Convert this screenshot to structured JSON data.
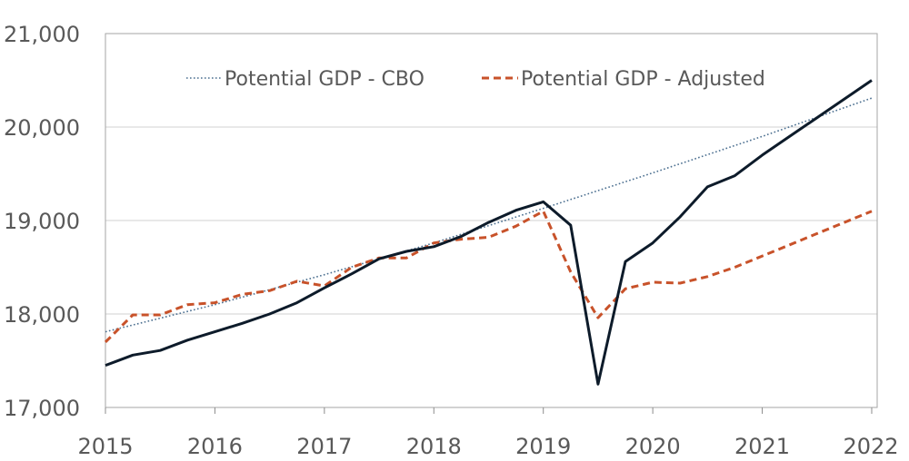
{
  "chart_data": {
    "type": "line",
    "x_ticks": [
      "2015",
      "2016",
      "2017",
      "2018",
      "2019",
      "2020",
      "2021",
      "2022"
    ],
    "y_ticks": [
      "17,000",
      "18,000",
      "19,000",
      "20,000",
      "21,000"
    ],
    "ylim": [
      17000,
      21000
    ],
    "xlim": [
      2015.0,
      2022.05
    ],
    "grid": "horizontal",
    "legend_position": "top-center",
    "series": [
      {
        "name": "",
        "color": "#0d1b2a",
        "style": "solid",
        "points": [
          [
            2015.0,
            17450
          ],
          [
            2015.25,
            17560
          ],
          [
            2015.5,
            17610
          ],
          [
            2015.75,
            17720
          ],
          [
            2016.0,
            17810
          ],
          [
            2016.25,
            17900
          ],
          [
            2016.5,
            18000
          ],
          [
            2016.75,
            18120
          ],
          [
            2017.0,
            18280
          ],
          [
            2017.25,
            18430
          ],
          [
            2017.5,
            18590
          ],
          [
            2017.75,
            18670
          ],
          [
            2018.0,
            18720
          ],
          [
            2018.25,
            18830
          ],
          [
            2018.5,
            18980
          ],
          [
            2018.75,
            19110
          ],
          [
            2019.0,
            19200
          ],
          [
            2019.25,
            18950
          ],
          [
            2019.5,
            17250
          ],
          [
            2019.75,
            18560
          ],
          [
            2020.0,
            18760
          ],
          [
            2020.25,
            19040
          ],
          [
            2020.5,
            19360
          ],
          [
            2020.75,
            19480
          ],
          [
            2021.0,
            19700
          ],
          [
            2021.25,
            19900
          ],
          [
            2021.5,
            20100
          ],
          [
            2021.75,
            20300
          ],
          [
            2022.0,
            20500
          ]
        ]
      },
      {
        "name": "Potential GDP - CBO",
        "color": "#4a6e8f",
        "style": "dotted",
        "points": [
          [
            2015.0,
            17810
          ],
          [
            2016.0,
            18100
          ],
          [
            2017.0,
            18420
          ],
          [
            2018.0,
            18760
          ],
          [
            2019.0,
            19130
          ],
          [
            2020.0,
            19510
          ],
          [
            2021.0,
            19900
          ],
          [
            2022.0,
            20310
          ]
        ]
      },
      {
        "name": "Potential GDP - Adjusted",
        "color": "#c8522a",
        "style": "dashed",
        "points": [
          [
            2015.0,
            17700
          ],
          [
            2015.25,
            17990
          ],
          [
            2015.5,
            17990
          ],
          [
            2015.75,
            18100
          ],
          [
            2016.0,
            18120
          ],
          [
            2016.25,
            18210
          ],
          [
            2016.5,
            18250
          ],
          [
            2016.75,
            18350
          ],
          [
            2017.0,
            18300
          ],
          [
            2017.25,
            18500
          ],
          [
            2017.5,
            18600
          ],
          [
            2017.75,
            18600
          ],
          [
            2018.0,
            18760
          ],
          [
            2018.25,
            18800
          ],
          [
            2018.5,
            18820
          ],
          [
            2018.75,
            18940
          ],
          [
            2019.0,
            19100
          ],
          [
            2019.25,
            18450
          ],
          [
            2019.5,
            17960
          ],
          [
            2019.75,
            18270
          ],
          [
            2020.0,
            18340
          ],
          [
            2020.25,
            18330
          ],
          [
            2020.5,
            18400
          ],
          [
            2020.75,
            18500
          ],
          [
            2021.0,
            18620
          ],
          [
            2021.25,
            18740
          ],
          [
            2021.5,
            18860
          ],
          [
            2021.75,
            18980
          ],
          [
            2022.0,
            19100
          ]
        ]
      }
    ]
  }
}
